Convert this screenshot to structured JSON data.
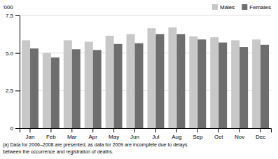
{
  "chart_data": {
    "type": "bar",
    "categories": [
      "Jan",
      "Feb",
      "Mar",
      "Apr",
      "May",
      "Jun",
      "Jul",
      "Aug",
      "Sep",
      "Oct",
      "Nov",
      "Dec"
    ],
    "series": [
      {
        "name": "Males",
        "color": "#c8c8c8",
        "values": [
          5.85,
          5.0,
          5.85,
          5.75,
          6.15,
          6.25,
          6.65,
          6.7,
          6.1,
          6.05,
          5.85,
          5.9
        ]
      },
      {
        "name": "Females",
        "color": "#6e6e6e",
        "values": [
          5.3,
          4.7,
          5.25,
          5.2,
          5.6,
          5.65,
          6.25,
          6.25,
          5.9,
          5.7,
          5.4,
          5.55
        ]
      }
    ],
    "ylabel": "'000",
    "ylim": [
      0,
      7.5
    ],
    "yticks": [
      0,
      2.5,
      {
        "value": 5.0,
        "label": "5.0"
      },
      7.5
    ],
    "grid": true,
    "legend": "upper right",
    "annotations": [
      "(a) Data for 2006–2008 are presented, as data for 2009 are incomplete due to delays\nbetween the occurrence and registration of deaths."
    ]
  }
}
